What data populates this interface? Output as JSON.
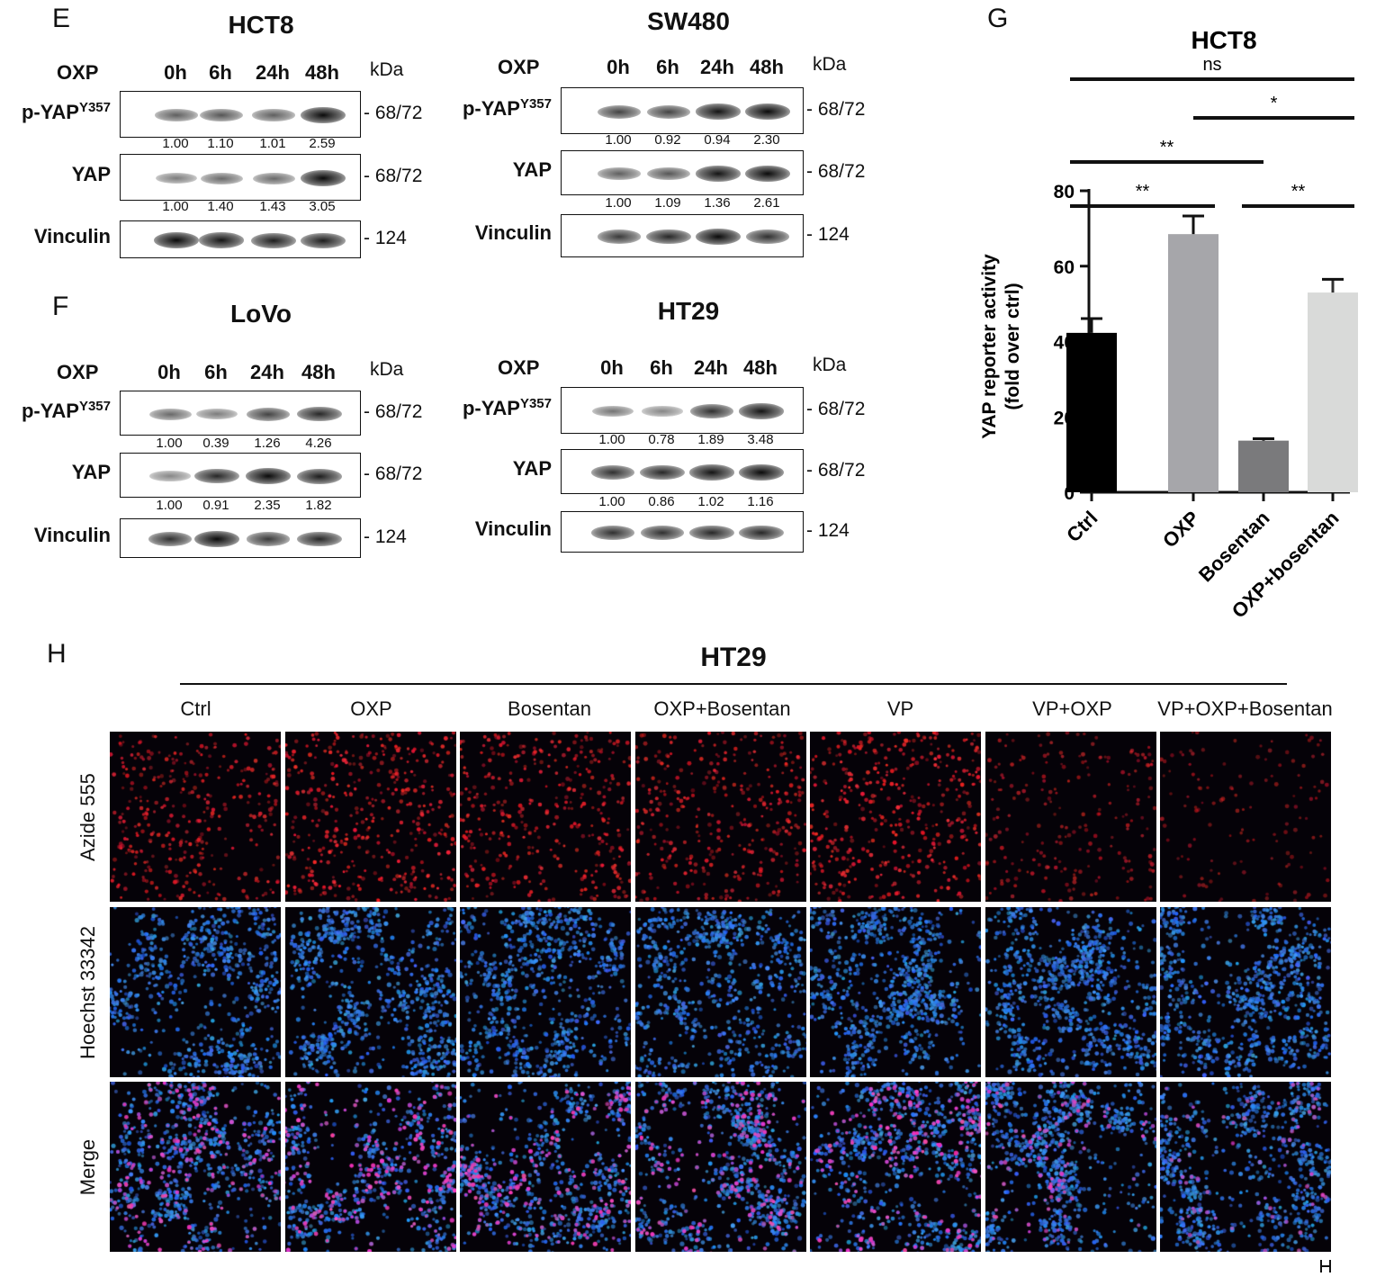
{
  "panels": {
    "E": {
      "letter": "E"
    },
    "F": {
      "letter": "F"
    },
    "G": {
      "letter": "G"
    },
    "H": {
      "letter": "H"
    }
  },
  "blots": [
    {
      "id": "hct8",
      "title": "HCT8",
      "treatment_label": "OXP",
      "timepoints": [
        "0h",
        "6h",
        "24h",
        "48h"
      ],
      "unit": "kDa",
      "rows": [
        {
          "name": "p-YAP",
          "sup": "Y357",
          "mw": "68/72",
          "quant": [
            "1.00",
            "1.10",
            "1.01",
            "2.59"
          ],
          "intensity": [
            0.55,
            0.6,
            0.55,
            1.0
          ]
        },
        {
          "name": "YAP",
          "sup": "",
          "mw": "68/72",
          "quant": [
            "1.00",
            "1.40",
            "1.43",
            "3.05"
          ],
          "intensity": [
            0.4,
            0.5,
            0.5,
            1.0
          ]
        },
        {
          "name": "Vinculin",
          "sup": "",
          "mw": "124",
          "quant": [],
          "intensity": [
            1.0,
            0.95,
            0.9,
            0.9
          ]
        }
      ]
    },
    {
      "id": "sw480",
      "title": "SW480",
      "treatment_label": "OXP",
      "timepoints": [
        "0h",
        "6h",
        "24h",
        "48h"
      ],
      "unit": "kDa",
      "rows": [
        {
          "name": "p-YAP",
          "sup": "Y357",
          "mw": "68/72",
          "quant": [
            "1.00",
            "0.92",
            "0.94",
            "2.30"
          ],
          "intensity": [
            0.7,
            0.7,
            0.95,
            1.0
          ]
        },
        {
          "name": "YAP",
          "sup": "",
          "mw": "68/72",
          "quant": [
            "1.00",
            "1.09",
            "1.36",
            "2.61"
          ],
          "intensity": [
            0.55,
            0.6,
            0.95,
            1.0
          ]
        },
        {
          "name": "Vinculin",
          "sup": "",
          "mw": "124",
          "quant": [],
          "intensity": [
            0.75,
            0.85,
            1.0,
            0.8
          ]
        }
      ]
    },
    {
      "id": "lovo",
      "title": "LoVo",
      "treatment_label": "OXP",
      "timepoints": [
        "0h",
        "6h",
        "24h",
        "48h"
      ],
      "unit": "kDa",
      "rows": [
        {
          "name": "p-YAP",
          "sup": "Y357",
          "mw": "68/72",
          "quant": [
            "1.00",
            "0.39",
            "1.26",
            "4.26"
          ],
          "intensity": [
            0.5,
            0.4,
            0.7,
            0.85
          ]
        },
        {
          "name": "YAP",
          "sup": "",
          "mw": "68/72",
          "quant": [
            "1.00",
            "0.91",
            "2.35",
            "1.82"
          ],
          "intensity": [
            0.35,
            0.85,
            1.0,
            0.9
          ]
        },
        {
          "name": "Vinculin",
          "sup": "",
          "mw": "124",
          "quant": [],
          "intensity": [
            0.8,
            1.0,
            0.75,
            0.85
          ]
        }
      ]
    },
    {
      "id": "ht29",
      "title": "HT29",
      "treatment_label": "OXP",
      "timepoints": [
        "0h",
        "6h",
        "24h",
        "48h"
      ],
      "unit": "kDa",
      "rows": [
        {
          "name": "p-YAP",
          "sup": "Y357",
          "mw": "68/72",
          "quant": [
            "1.00",
            "0.78",
            "1.89",
            "3.48"
          ],
          "intensity": [
            0.45,
            0.35,
            0.8,
            0.95
          ]
        },
        {
          "name": "YAP",
          "sup": "",
          "mw": "68/72",
          "quant": [
            "1.00",
            "0.86",
            "1.02",
            "1.16"
          ],
          "intensity": [
            0.8,
            0.85,
            0.95,
            1.0
          ]
        },
        {
          "name": "Vinculin",
          "sup": "",
          "mw": "124",
          "quant": [],
          "intensity": [
            0.8,
            0.8,
            0.85,
            0.85
          ]
        }
      ]
    }
  ],
  "chart_data": {
    "type": "bar",
    "title": "HCT8",
    "ylabel_line1": "YAP reporter activity",
    "ylabel_line2": "(fold over ctrl)",
    "categories": [
      "Ctrl",
      "OXP",
      "Bosentan",
      "OXP+bosentan"
    ],
    "values": [
      42.3,
      68.5,
      13.7,
      53.0
    ],
    "errors": [
      3.8,
      4.8,
      0.5,
      3.5
    ],
    "colors": [
      "#000000",
      "#a6a6aa",
      "#7a7a7c",
      "#d9dad9"
    ],
    "ylim": [
      0,
      80
    ],
    "yticks": [
      0,
      20,
      40,
      60,
      80
    ],
    "significance": [
      {
        "from": 0,
        "to": 3,
        "label": "ns"
      },
      {
        "from": 1,
        "to": 3,
        "label": "*"
      },
      {
        "from": 0,
        "to": 2,
        "label": "**"
      },
      {
        "from": 0,
        "to": 1,
        "label": "**"
      },
      {
        "from": 2,
        "to": 3,
        "label": "**"
      }
    ]
  },
  "imaging": {
    "title": "HT29",
    "conditions": [
      "Ctrl",
      "OXP",
      "Bosentan",
      "OXP+Bosentan",
      "VP",
      "VP+OXP",
      "VP+OXP+Bosentan"
    ],
    "channels": [
      "Azide 555",
      "Hoechst 33342",
      "Merge"
    ],
    "red_density": [
      0.8,
      0.95,
      0.85,
      0.8,
      0.95,
      0.5,
      0.3
    ],
    "blue_density": [
      0.75,
      0.8,
      0.8,
      0.85,
      0.85,
      0.95,
      0.9
    ]
  }
}
